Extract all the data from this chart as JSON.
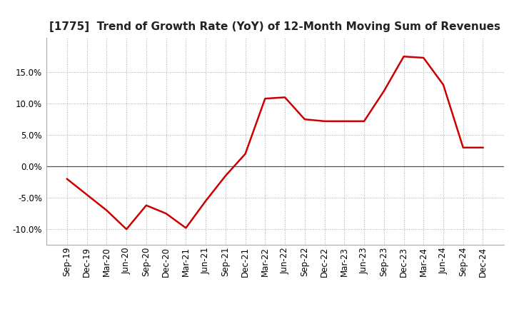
{
  "title": "[1775]  Trend of Growth Rate (YoY) of 12-Month Moving Sum of Revenues",
  "title_fontsize": 11,
  "line_color": "#cc0000",
  "line_width": 1.8,
  "background_color": "#ffffff",
  "grid_color": "#aaaaaa",
  "zero_line_color": "#555555",
  "x_labels": [
    "Sep-19",
    "Dec-19",
    "Mar-20",
    "Jun-20",
    "Sep-20",
    "Dec-20",
    "Mar-21",
    "Jun-21",
    "Sep-21",
    "Dec-21",
    "Mar-22",
    "Jun-22",
    "Sep-22",
    "Dec-22",
    "Mar-23",
    "Jun-23",
    "Sep-23",
    "Dec-23",
    "Mar-24",
    "Jun-24",
    "Sep-24",
    "Dec-24"
  ],
  "y_values": [
    -2.0,
    -4.5,
    -7.0,
    -10.0,
    -6.2,
    -7.5,
    -9.8,
    -5.5,
    -1.5,
    2.0,
    10.8,
    11.0,
    7.5,
    7.2,
    7.2,
    7.2,
    12.0,
    17.5,
    17.3,
    13.0,
    3.0,
    3.0
  ],
  "ylim": [
    -12.5,
    20.5
  ],
  "yticks": [
    -10.0,
    -5.0,
    0.0,
    5.0,
    10.0,
    15.0
  ],
  "tick_fontsize": 8.5,
  "title_color": "#222222"
}
